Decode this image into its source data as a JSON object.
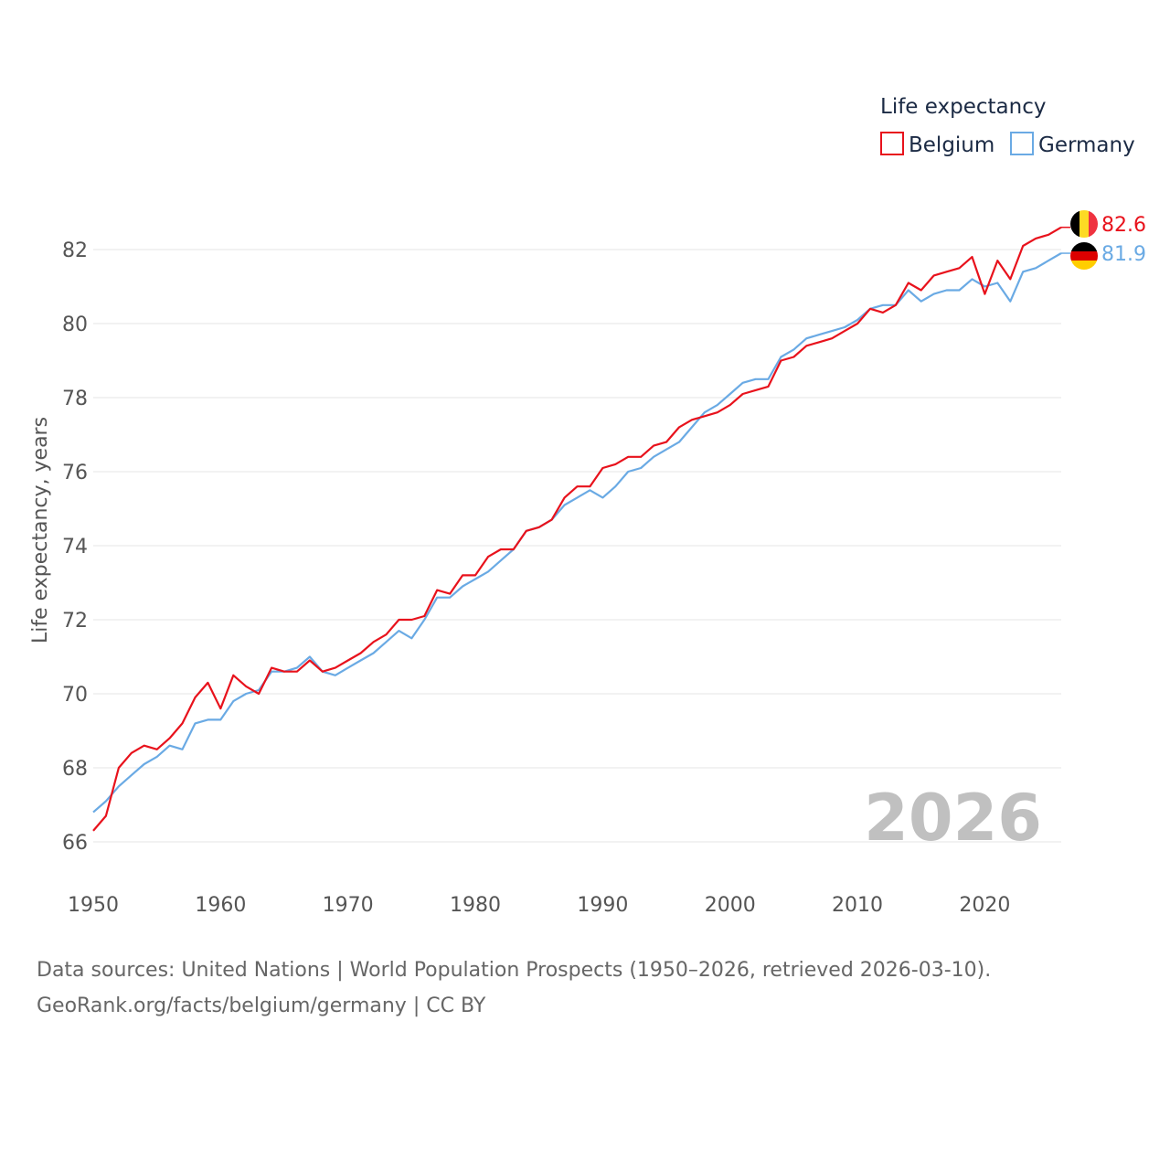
{
  "chart_data": {
    "type": "line",
    "title": "",
    "xlabel": "",
    "ylabel": "Life expectancy, years",
    "xlim": [
      1950,
      2026
    ],
    "ylim": [
      65,
      83
    ],
    "y_ticks": [
      66,
      68,
      70,
      72,
      74,
      76,
      78,
      80,
      82
    ],
    "x_ticks": [
      1950,
      1960,
      1970,
      1980,
      1990,
      2000,
      2010,
      2020
    ],
    "grid": true,
    "legend": {
      "title": "Life expectancy",
      "position": "top-right"
    },
    "year_label": "2026",
    "x": [
      1950,
      1951,
      1952,
      1953,
      1954,
      1955,
      1956,
      1957,
      1958,
      1959,
      1960,
      1961,
      1962,
      1963,
      1964,
      1965,
      1966,
      1967,
      1968,
      1969,
      1970,
      1971,
      1972,
      1973,
      1974,
      1975,
      1976,
      1977,
      1978,
      1979,
      1980,
      1981,
      1982,
      1983,
      1984,
      1985,
      1986,
      1987,
      1988,
      1989,
      1990,
      1991,
      1992,
      1993,
      1994,
      1995,
      1996,
      1997,
      1998,
      1999,
      2000,
      2001,
      2002,
      2003,
      2004,
      2005,
      2006,
      2007,
      2008,
      2009,
      2010,
      2011,
      2012,
      2013,
      2014,
      2015,
      2016,
      2017,
      2018,
      2019,
      2020,
      2021,
      2022,
      2023,
      2024,
      2025,
      2026
    ],
    "series": [
      {
        "name": "Belgium",
        "color": "#e8121c",
        "end_label": "82.6",
        "values": [
          66.3,
          66.7,
          68.0,
          68.4,
          68.6,
          68.5,
          68.8,
          69.2,
          69.9,
          70.3,
          69.6,
          70.5,
          70.2,
          70.0,
          70.7,
          70.6,
          70.6,
          70.9,
          70.6,
          70.7,
          70.9,
          71.1,
          71.4,
          71.6,
          72.0,
          72.0,
          72.1,
          72.8,
          72.7,
          73.2,
          73.2,
          73.7,
          73.9,
          73.9,
          74.4,
          74.5,
          74.7,
          75.3,
          75.6,
          75.6,
          76.1,
          76.2,
          76.4,
          76.4,
          76.7,
          76.8,
          77.2,
          77.4,
          77.5,
          77.6,
          77.8,
          78.1,
          78.2,
          78.3,
          79.0,
          79.1,
          79.4,
          79.5,
          79.6,
          79.8,
          80.0,
          80.4,
          80.3,
          80.5,
          81.1,
          80.9,
          81.3,
          81.4,
          81.5,
          81.8,
          80.8,
          81.7,
          81.2,
          82.1,
          82.3,
          82.4,
          82.6
        ]
      },
      {
        "name": "Germany",
        "color": "#6aaae4",
        "end_label": "81.9",
        "values": [
          66.8,
          67.1,
          67.5,
          67.8,
          68.1,
          68.3,
          68.6,
          68.5,
          69.2,
          69.3,
          69.3,
          69.8,
          70.0,
          70.1,
          70.6,
          70.6,
          70.7,
          71.0,
          70.6,
          70.5,
          70.7,
          70.9,
          71.1,
          71.4,
          71.7,
          71.5,
          72.0,
          72.6,
          72.6,
          72.9,
          73.1,
          73.3,
          73.6,
          73.9,
          74.4,
          74.5,
          74.7,
          75.1,
          75.3,
          75.5,
          75.3,
          75.6,
          76.0,
          76.1,
          76.4,
          76.6,
          76.8,
          77.2,
          77.6,
          77.8,
          78.1,
          78.4,
          78.5,
          78.5,
          79.1,
          79.3,
          79.6,
          79.7,
          79.8,
          79.9,
          80.1,
          80.4,
          80.5,
          80.5,
          80.9,
          80.6,
          80.8,
          80.9,
          80.9,
          81.2,
          81.0,
          81.1,
          80.6,
          81.4,
          81.5,
          81.7,
          81.9
        ]
      }
    ]
  },
  "footer": {
    "source_line": "Data sources: United Nations | World Population Prospects (1950–2026, retrieved 2026-03-10).",
    "credit_line": "GeoRank.org/facts/belgium/germany | CC BY"
  },
  "colors": {
    "belgium_flag": [
      "#000000",
      "#fdda24",
      "#ef3340"
    ],
    "germany_flag": [
      "#000000",
      "#dd0000",
      "#ffce00"
    ]
  }
}
